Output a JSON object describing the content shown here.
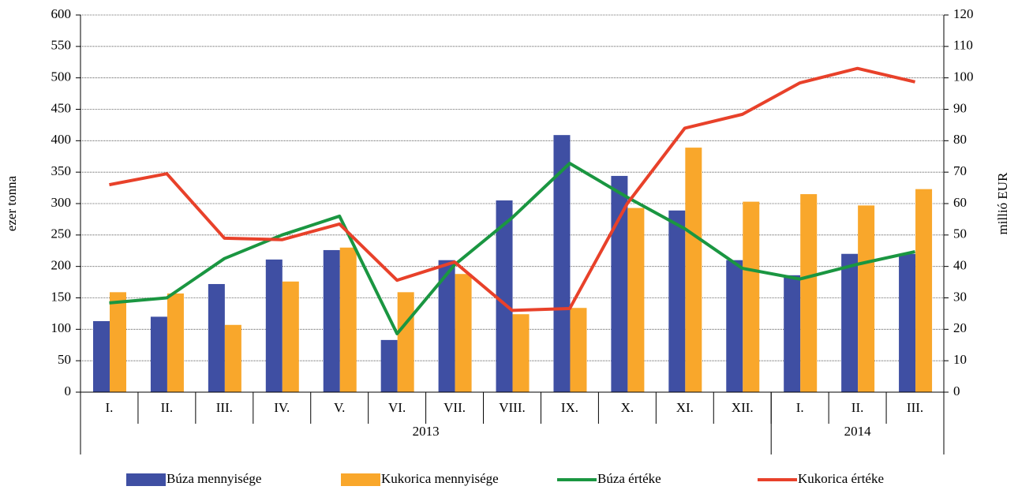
{
  "chart_data": {
    "type": "bar_line",
    "categories": [
      "I.",
      "II.",
      "III.",
      "IV.",
      "V.",
      "VI.",
      "VII.",
      "VIII.",
      "IX.",
      "X.",
      "XI.",
      "XII.",
      "I.",
      "II.",
      "III."
    ],
    "x_groups": [
      {
        "name": "2013",
        "count": 12
      },
      {
        "name": "2014",
        "count": 3
      }
    ],
    "ylabel": "ezer tonna",
    "y2label": "millió EUR",
    "ylim": [
      0,
      600
    ],
    "yticks": [
      0,
      50,
      100,
      150,
      200,
      250,
      300,
      350,
      400,
      450,
      500,
      550,
      600
    ],
    "y2lim": [
      0,
      120
    ],
    "y2ticks": [
      0,
      10,
      20,
      30,
      40,
      50,
      60,
      70,
      80,
      90,
      100,
      110,
      120
    ],
    "grid": true,
    "legend": "bottom",
    "series": [
      {
        "name": "Búza mennyisége",
        "type": "bar",
        "color": "#3f4fa3",
        "values": [
          113,
          120,
          172,
          211,
          226,
          83,
          210,
          305,
          409,
          344,
          289,
          210,
          186,
          220,
          220
        ]
      },
      {
        "name": "Kukorica mennyisége",
        "type": "bar",
        "color": "#f9a72b",
        "values": [
          159,
          157,
          107,
          176,
          230,
          159,
          188,
          124,
          134,
          293,
          389,
          303,
          315,
          297,
          323
        ]
      },
      {
        "name": "Búza értéke",
        "type": "line",
        "axis": "y2",
        "color": "#1a9641",
        "values": [
          28.4,
          30,
          42.5,
          50,
          56,
          18.6,
          40.5,
          55.5,
          72.8,
          62,
          52,
          39.4,
          36,
          40.7,
          44.7
        ]
      },
      {
        "name": "Kukorica értéke",
        "type": "line",
        "axis": "y2",
        "color": "#e8412a",
        "values": [
          66,
          69.5,
          49,
          48.5,
          53.5,
          35.6,
          41.4,
          26,
          26.6,
          60,
          84,
          88.4,
          98.4,
          103,
          98.7
        ]
      }
    ]
  }
}
